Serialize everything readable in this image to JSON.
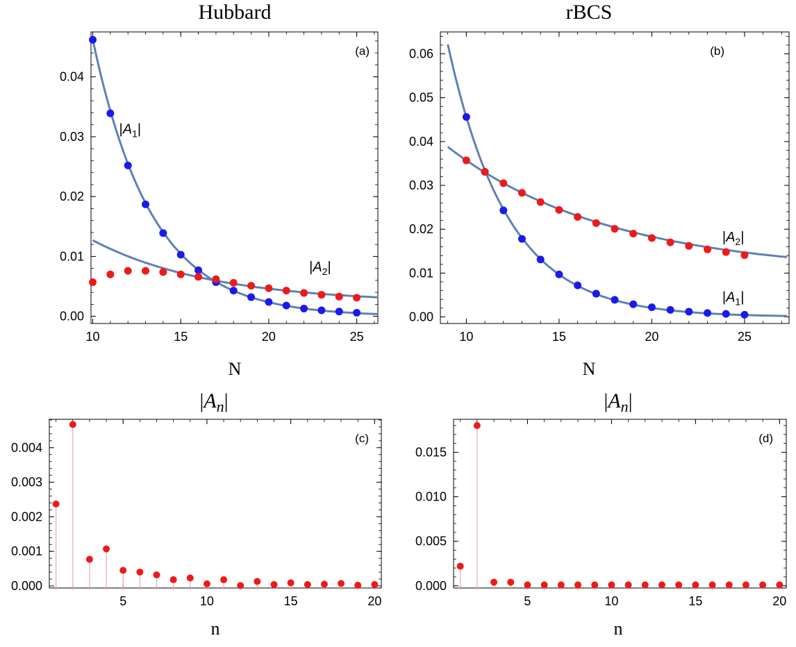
{
  "colors": {
    "blue": "#1a1aee",
    "red": "#ee1a1a",
    "curve": "#5e81b5",
    "stem": "#f4a6a6"
  },
  "chart_data": [
    {
      "id": "a",
      "type": "scatter",
      "title": "Hubbard",
      "panel_label": "(a)",
      "xlabel": "N",
      "ylabel": "",
      "xlim": [
        9.9,
        26.2
      ],
      "ylim": [
        -0.0012,
        0.0475
      ],
      "xticks": [
        10,
        15,
        20,
        25
      ],
      "yticks": [
        0.0,
        0.01,
        0.02,
        0.03,
        0.04
      ],
      "ytick_labels": [
        "0.00",
        "0.01",
        "0.02",
        "0.03",
        "0.04"
      ],
      "annotations": [
        {
          "text": "|A1|",
          "pre": "|",
          "var": "A",
          "sub": "1",
          "post": "|",
          "x": 11.5,
          "y": 0.0305
        },
        {
          "text": "|A2|",
          "pre": "|",
          "var": "A",
          "sub": "2",
          "post": "|",
          "x": 22.3,
          "y": 0.0075
        }
      ],
      "series": [
        {
          "name": "|A1|",
          "color": "blue",
          "x": [
            10,
            11,
            12,
            13,
            14,
            15,
            16,
            17,
            18,
            19,
            20,
            21,
            22,
            23,
            24,
            25
          ],
          "y": [
            0.0462,
            0.0339,
            0.0252,
            0.0187,
            0.0139,
            0.0103,
            0.0077,
            0.0057,
            0.0043,
            0.0032,
            0.0024,
            0.0018,
            0.0013,
            0.001,
            0.0008,
            0.0006
          ],
          "fit": {
            "a": 0.0462,
            "b": 0.2975,
            "x0": 10,
            "c": 0.0,
            "from": 10,
            "to": 26.2
          }
        },
        {
          "name": "|A2|",
          "color": "red",
          "x": [
            10,
            11,
            12,
            13,
            14,
            15,
            16,
            17,
            18,
            19,
            20,
            21,
            22,
            23,
            24,
            25
          ],
          "y": [
            0.0057,
            0.007,
            0.0076,
            0.0076,
            0.0074,
            0.007,
            0.0066,
            0.0062,
            0.0056,
            0.0051,
            0.0047,
            0.0043,
            0.0039,
            0.0036,
            0.0033,
            0.0031
          ],
          "fit": {
            "a": 0.0105,
            "b": 0.147,
            "x0": 10,
            "c": 0.0022,
            "from": 10,
            "to": 26.2
          }
        }
      ]
    },
    {
      "id": "b",
      "type": "scatter",
      "title": "rBCS",
      "panel_label": "(b)",
      "xlabel": "N",
      "ylabel": "",
      "xlim": [
        8.6,
        27.4
      ],
      "ylim": [
        -0.0015,
        0.065
      ],
      "xticks": [
        10,
        15,
        20,
        25
      ],
      "yticks": [
        0.0,
        0.01,
        0.02,
        0.03,
        0.04,
        0.05,
        0.06
      ],
      "ytick_labels": [
        "0.00",
        "0.01",
        "0.02",
        "0.03",
        "0.04",
        "0.05",
        "0.06"
      ],
      "annotations": [
        {
          "text": "|A2|",
          "pre": "|",
          "var": "A",
          "sub": "2",
          "post": "|",
          "x": 23.8,
          "y": 0.0172
        },
        {
          "text": "|A1|",
          "pre": "|",
          "var": "A",
          "sub": "1",
          "post": "|",
          "x": 23.8,
          "y": 0.0035
        }
      ],
      "series": [
        {
          "name": "|A1|",
          "color": "blue",
          "x": [
            10,
            11,
            12,
            13,
            14,
            15,
            16,
            17,
            18,
            19,
            20,
            21,
            22,
            23,
            24,
            25
          ],
          "y": [
            0.0456,
            0.0331,
            0.0243,
            0.0178,
            0.0131,
            0.0097,
            0.0072,
            0.0053,
            0.0039,
            0.0029,
            0.0022,
            0.0016,
            0.0012,
            0.0009,
            0.0007,
            0.0005
          ],
          "fit": {
            "a": 0.0456,
            "b": 0.31,
            "x0": 10,
            "c": 0.0,
            "from": 9,
            "to": 27.3
          }
        },
        {
          "name": "|A2|",
          "color": "red",
          "x": [
            10,
            11,
            12,
            13,
            14,
            15,
            16,
            17,
            18,
            19,
            20,
            21,
            22,
            23,
            24,
            25
          ],
          "y": [
            0.0357,
            0.0331,
            0.0305,
            0.0283,
            0.0262,
            0.0244,
            0.0228,
            0.0214,
            0.0201,
            0.019,
            0.018,
            0.017,
            0.0162,
            0.0154,
            0.0148,
            0.0141
          ],
          "fit": {
            "a": 0.0257,
            "b": 0.113,
            "x0": 10,
            "c": 0.01,
            "from": 9,
            "to": 27.3
          }
        }
      ]
    },
    {
      "id": "c",
      "type": "stem",
      "title": "|An|",
      "title_parts": {
        "pre": "|",
        "var": "A",
        "sub": "n",
        "post": "|"
      },
      "panel_label": "(c)",
      "xlabel": "n",
      "ylabel": "",
      "xlim": [
        0.6,
        20.4
      ],
      "ylim": [
        -6e-05,
        0.00482
      ],
      "xticks": [
        5,
        10,
        15,
        20
      ],
      "yticks": [
        0.0,
        0.001,
        0.002,
        0.003,
        0.004
      ],
      "ytick_labels": [
        "0.000",
        "0.001",
        "0.002",
        "0.003",
        "0.004"
      ],
      "series": [
        {
          "name": "|An|",
          "color": "red",
          "x": [
            1,
            2,
            3,
            4,
            5,
            6,
            7,
            8,
            9,
            10,
            11,
            12,
            13,
            14,
            15,
            16,
            17,
            18,
            19,
            20
          ],
          "y": [
            0.00237,
            0.00467,
            0.00077,
            0.00107,
            0.00045,
            0.0004,
            0.00032,
            0.00018,
            0.00023,
            6e-05,
            0.00018,
            1e-05,
            0.00013,
            4e-05,
            9e-05,
            4e-05,
            5e-05,
            7e-05,
            2e-05,
            4e-05
          ]
        }
      ]
    },
    {
      "id": "d",
      "type": "stem",
      "title": "|An|",
      "title_parts": {
        "pre": "|",
        "var": "A",
        "sub": "n",
        "post": "|"
      },
      "panel_label": "(d)",
      "xlabel": "n",
      "ylabel": "",
      "xlim": [
        0.6,
        20.4
      ],
      "ylim": [
        -0.00025,
        0.0187
      ],
      "xticks": [
        5,
        10,
        15,
        20
      ],
      "yticks": [
        0.0,
        0.005,
        0.01,
        0.015
      ],
      "ytick_labels": [
        "0.000",
        "0.005",
        "0.010",
        "0.015"
      ],
      "series": [
        {
          "name": "|An|",
          "color": "red",
          "x": [
            1,
            2,
            3,
            4,
            5,
            6,
            7,
            8,
            9,
            10,
            11,
            12,
            13,
            14,
            15,
            16,
            17,
            18,
            19,
            20
          ],
          "y": [
            0.0022,
            0.018,
            0.0004,
            0.0004,
            0.0001,
            0.0001,
            0.0001,
            0.0001,
            0.0001,
            0.0001,
            0.0001,
            0.0001,
            0.0001,
            0.0001,
            0.0001,
            0.0001,
            0.0001,
            0.0001,
            0.0001,
            0.0001
          ]
        }
      ]
    }
  ]
}
